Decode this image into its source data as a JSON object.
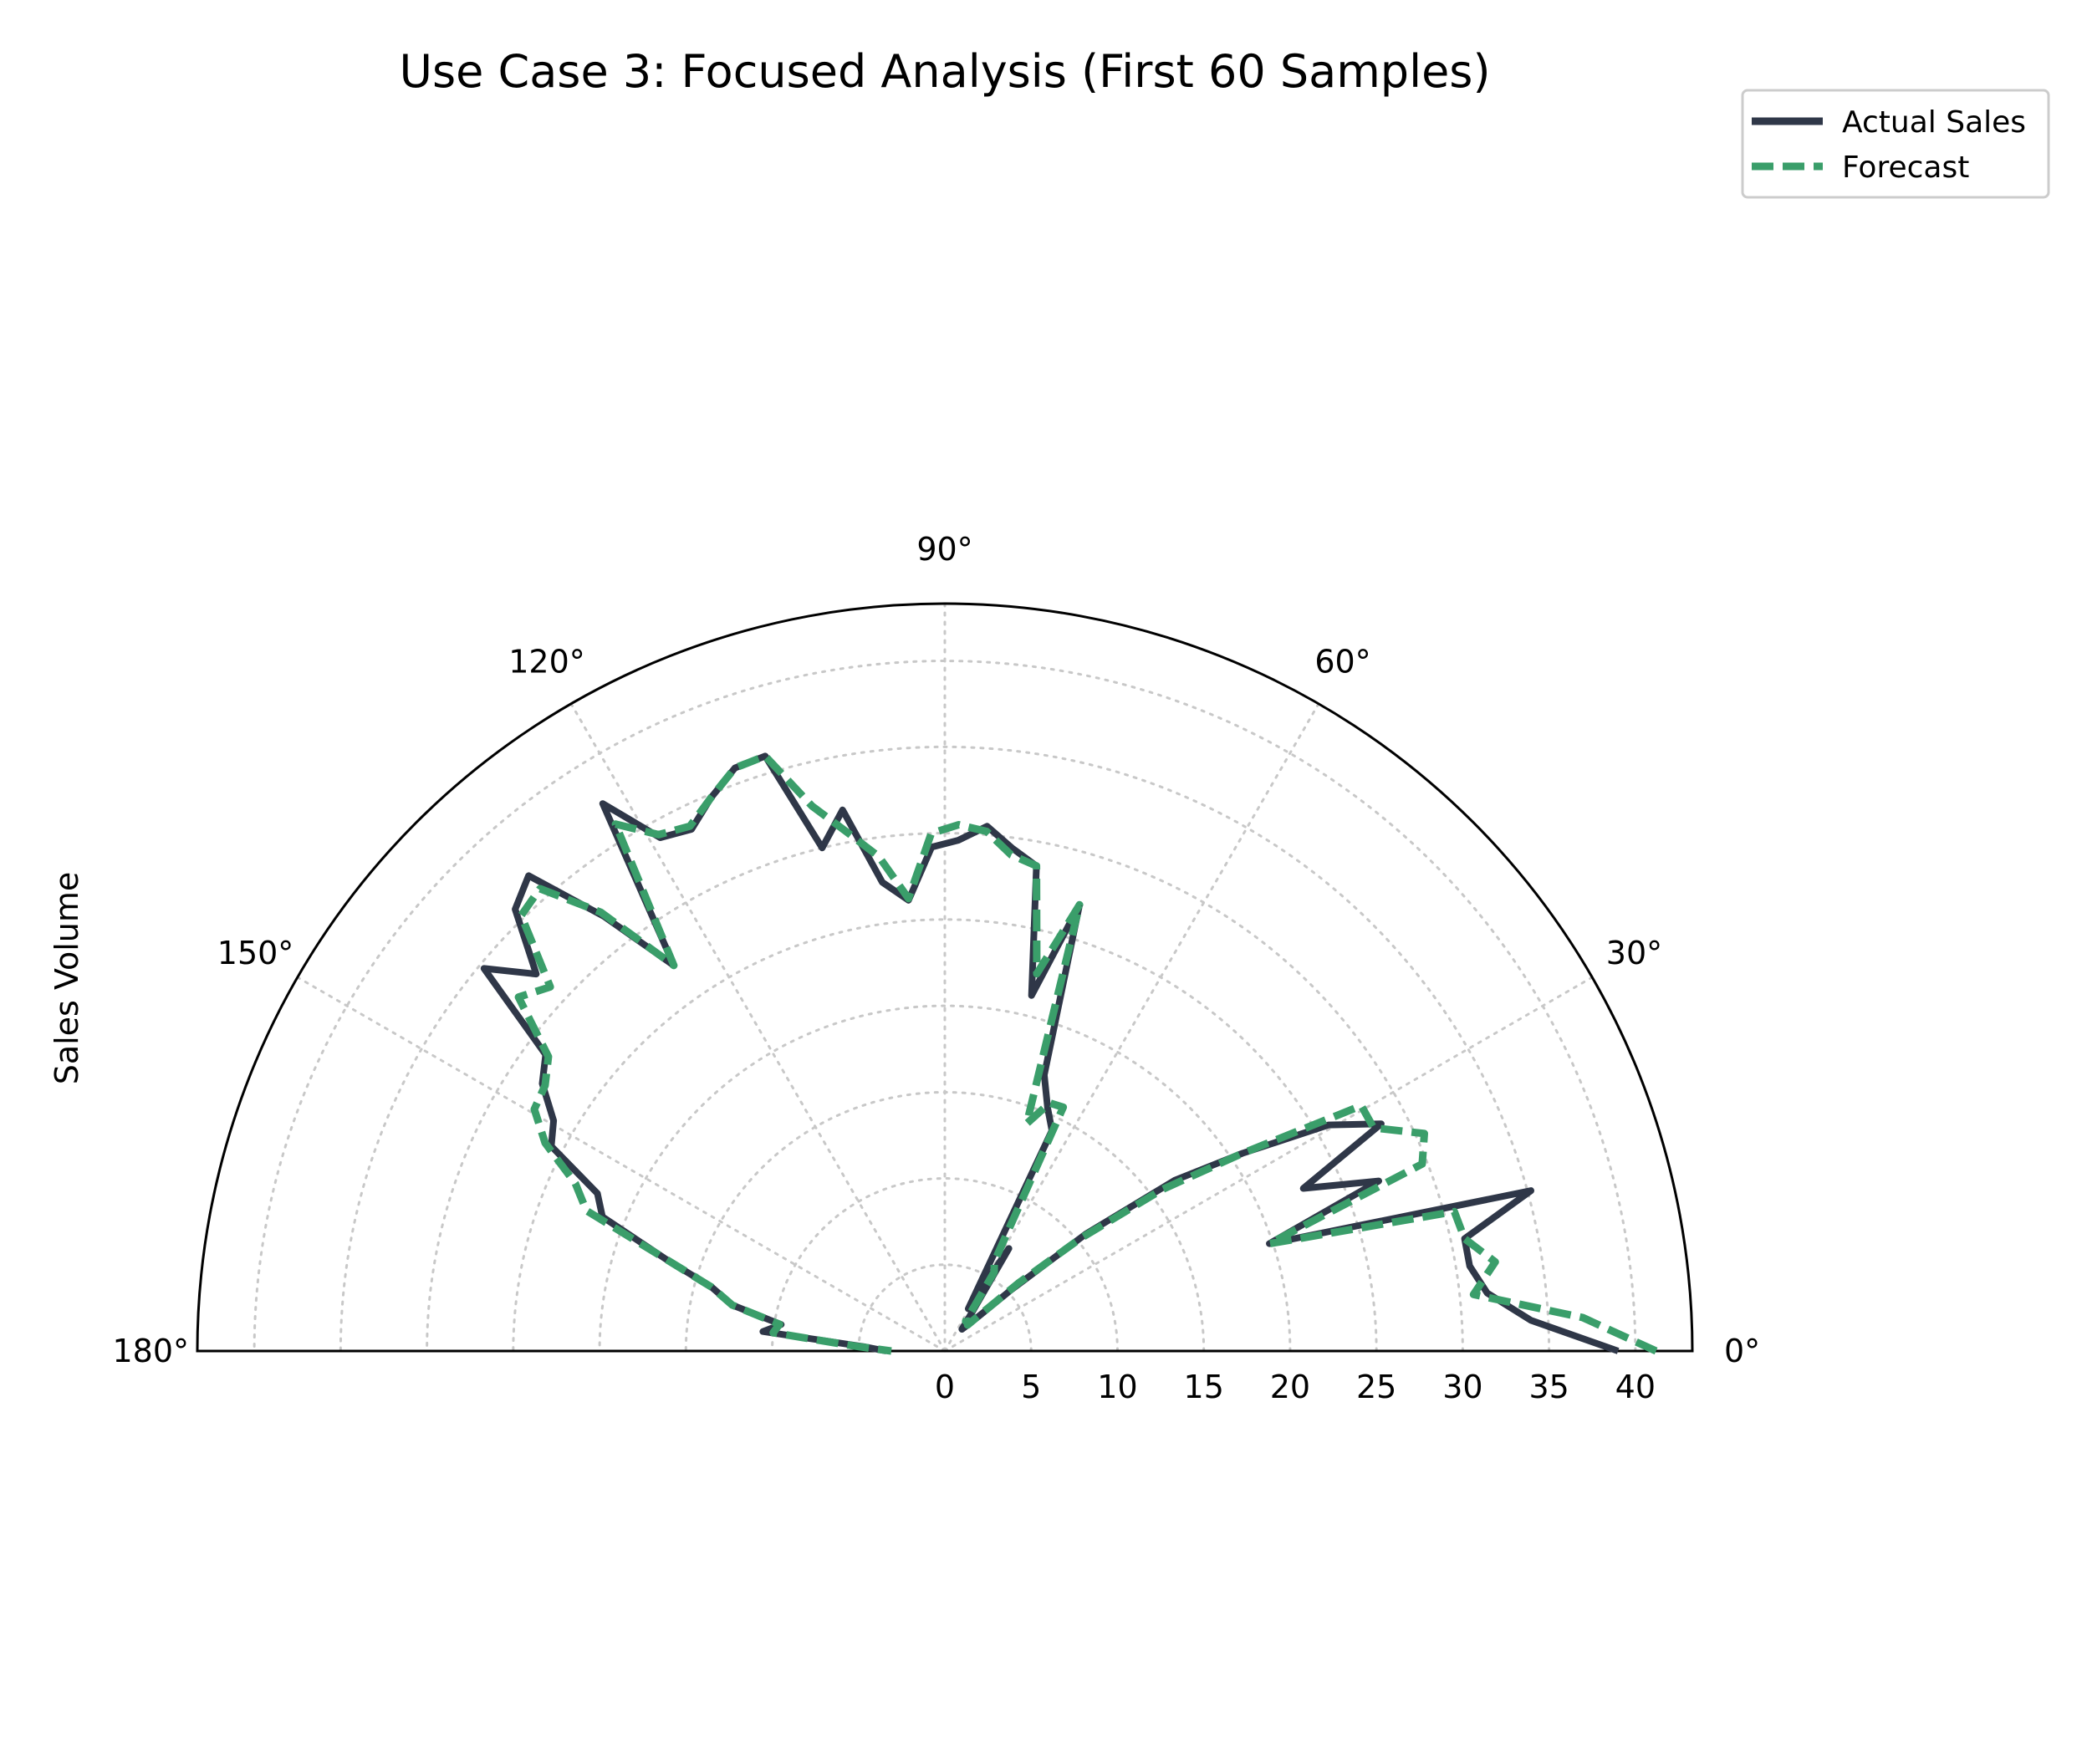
{
  "chart_data": {
    "type": "line",
    "subtype": "polar-half",
    "title": "Use Case 3: Focused Analysis (First 60 Samples)",
    "ylabel": "Sales Volume",
    "theta_range_deg": [
      0,
      180
    ],
    "r_range": [
      0,
      43.3
    ],
    "theta_ticks": [
      "0°",
      "30°",
      "60°",
      "90°",
      "120°",
      "150°",
      "180°"
    ],
    "theta_tick_values_deg": [
      0,
      30,
      60,
      90,
      120,
      150,
      180
    ],
    "r_ticks": [
      "0",
      "5",
      "10",
      "15",
      "20",
      "25",
      "30",
      "35",
      "40"
    ],
    "r_tick_values": [
      0,
      5,
      10,
      15,
      20,
      25,
      30,
      35,
      40
    ],
    "grid": true,
    "legend_position": "top-right",
    "series": [
      {
        "name": "Actual Sales",
        "color": "#2f3748",
        "style": "solid",
        "points": [
          [
            0.0,
            39.0
          ],
          [
            3.0,
            34.0
          ],
          [
            6.1,
            31.6
          ],
          [
            9.2,
            30.8
          ],
          [
            12.2,
            30.8
          ],
          [
            15.3,
            35.2
          ],
          [
            18.3,
            19.8
          ],
          [
            21.4,
            27.0
          ],
          [
            24.4,
            22.8
          ],
          [
            27.5,
            28.5
          ],
          [
            30.5,
            25.8
          ],
          [
            33.6,
            20.7
          ],
          [
            36.6,
            16.6
          ],
          [
            39.7,
            10.6
          ],
          [
            42.7,
            5.2
          ],
          [
            45.8,
            2.8
          ],
          [
            48.8,
            2.0
          ],
          [
            51.9,
            1.6
          ],
          [
            54.9,
            2.7
          ],
          [
            58.0,
            7.0
          ],
          [
            61.0,
            2.8
          ],
          [
            64.1,
            14.2
          ],
          [
            67.1,
            15.3
          ],
          [
            70.2,
            17.0
          ],
          [
            73.2,
            27.0
          ],
          [
            76.3,
            21.2
          ],
          [
            79.3,
            28.6
          ],
          [
            82.4,
            29.4
          ],
          [
            85.4,
            30.5
          ],
          [
            88.5,
            29.6
          ],
          [
            91.5,
            29.2
          ],
          [
            94.6,
            26.2
          ],
          [
            97.6,
            27.4
          ],
          [
            100.7,
            31.9
          ],
          [
            103.7,
            30.0
          ],
          [
            106.8,
            36.0
          ],
          [
            109.8,
            35.9
          ],
          [
            112.9,
            34.8
          ],
          [
            115.9,
            33.6
          ],
          [
            119.0,
            34.0
          ],
          [
            122.0,
            37.4
          ],
          [
            125.1,
            27.3
          ],
          [
            128.1,
            32.0
          ],
          [
            131.2,
            36.6
          ],
          [
            134.2,
            35.7
          ],
          [
            137.3,
            32.2
          ],
          [
            140.3,
            34.7
          ],
          [
            143.4,
            28.8
          ],
          [
            146.4,
            28.0
          ],
          [
            149.5,
            26.3
          ],
          [
            152.5,
            25.7
          ],
          [
            155.6,
            22.1
          ],
          [
            158.6,
            21.3
          ],
          [
            161.7,
            17.1
          ],
          [
            164.7,
            14.0
          ],
          [
            167.8,
            12.6
          ],
          [
            170.8,
            9.6
          ],
          [
            173.9,
            10.6
          ],
          [
            176.9,
            4.7
          ],
          [
            180.0,
            3.4
          ]
        ]
      },
      {
        "name": "Forecast",
        "color": "#3a9e6a",
        "style": "dashed",
        "points": [
          [
            0.0,
            41.2
          ],
          [
            3.0,
            37.0
          ],
          [
            6.1,
            30.8
          ],
          [
            9.2,
            32.3
          ],
          [
            12.2,
            30.8
          ],
          [
            15.3,
            30.6
          ],
          [
            18.3,
            19.8
          ],
          [
            21.4,
            29.7
          ],
          [
            24.4,
            30.5
          ],
          [
            27.5,
            28.0
          ],
          [
            30.5,
            28.0
          ],
          [
            33.6,
            20.7
          ],
          [
            36.6,
            15.7
          ],
          [
            39.7,
            10.2
          ],
          [
            42.7,
            5.8
          ],
          [
            45.8,
            3.0
          ],
          [
            48.8,
            2.0
          ],
          [
            51.9,
            2.2
          ],
          [
            54.9,
            2.1
          ],
          [
            58.0,
            5.4
          ],
          [
            61.0,
            5.9
          ],
          [
            64.1,
            15.7
          ],
          [
            67.1,
            15.6
          ],
          [
            70.2,
            14.0
          ],
          [
            73.2,
            27.0
          ],
          [
            76.3,
            22.5
          ],
          [
            79.3,
            28.6
          ],
          [
            82.4,
            29.0
          ],
          [
            85.4,
            30.2
          ],
          [
            88.5,
            30.5
          ],
          [
            91.5,
            30.0
          ],
          [
            94.6,
            26.3
          ],
          [
            97.6,
            28.9
          ],
          [
            100.7,
            30.6
          ],
          [
            103.7,
            32.5
          ],
          [
            106.8,
            36.0
          ],
          [
            109.8,
            35.9
          ],
          [
            112.9,
            34.8
          ],
          [
            115.9,
            33.8
          ],
          [
            119.0,
            34.2
          ],
          [
            122.0,
            36.0
          ],
          [
            125.1,
            27.3
          ],
          [
            128.1,
            32.3
          ],
          [
            131.2,
            35.6
          ],
          [
            134.2,
            35.2
          ],
          [
            137.3,
            31.1
          ],
          [
            140.3,
            32.1
          ],
          [
            143.4,
            28.6
          ],
          [
            146.4,
            27.8
          ],
          [
            149.5,
            27.6
          ],
          [
            152.5,
            26.1
          ],
          [
            155.6,
            23.5
          ],
          [
            158.6,
            22.3
          ],
          [
            161.7,
            17.1
          ],
          [
            164.7,
            14.0
          ],
          [
            167.8,
            12.6
          ],
          [
            170.8,
            9.7
          ],
          [
            173.9,
            10.0
          ],
          [
            176.9,
            5.2
          ],
          [
            180.0,
            3.1
          ]
        ]
      }
    ]
  }
}
